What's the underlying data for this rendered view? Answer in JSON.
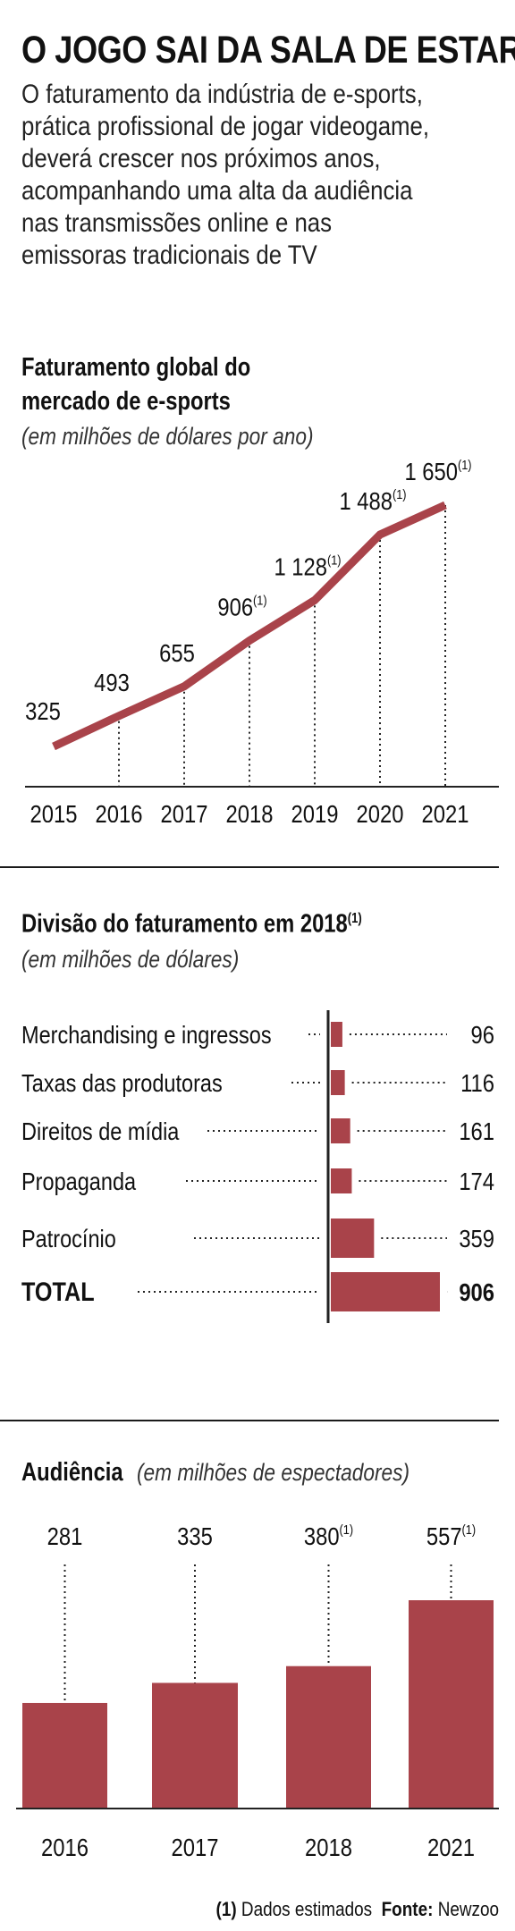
{
  "header": {
    "title": "O JOGO SAI DA SALA DE ESTAR",
    "intro_lines": [
      "O faturamento da indústria de e-sports,",
      "prática profissional de jogar videogame,",
      "deverá crescer nos próximos anos,",
      "acompanhando uma alta da audiência",
      "nas transmissões online e nas",
      "emissoras tradicionais de TV"
    ]
  },
  "colors": {
    "accent": "#a9434a",
    "text": "#1a1a1a",
    "background": "#ffffff"
  },
  "chart_data": [
    {
      "type": "line",
      "title_lines": [
        "Faturamento global do",
        "mercado de e-sports"
      ],
      "subtitle": "(em milhões de dólares por ano)",
      "x": [
        "2015",
        "2016",
        "2017",
        "2018",
        "2019",
        "2020",
        "2021"
      ],
      "values": [
        325,
        493,
        655,
        906,
        1128,
        1488,
        1650
      ],
      "value_labels": [
        "325",
        "493",
        "655",
        "906",
        "1 128",
        "1 488",
        "1 650"
      ],
      "estimated": [
        false,
        false,
        false,
        true,
        true,
        true,
        true
      ],
      "note_marker": "(1)",
      "grid": false
    },
    {
      "type": "bar",
      "orientation": "horizontal",
      "title": "Divisão do faturamento em 2018",
      "title_note": "(1)",
      "subtitle": "(em milhões de dólares)",
      "categories": [
        "Merchandising e ingressos",
        "Taxas das produtoras",
        "Direitos de mídia",
        "Propaganda",
        "Patrocínio",
        "TOTAL"
      ],
      "values": [
        96,
        116,
        161,
        174,
        359,
        906
      ]
    },
    {
      "type": "bar",
      "title": "Audiência",
      "subtitle": "(em milhões de espectadores)",
      "categories": [
        "2016",
        "2017",
        "2018",
        "2021"
      ],
      "values": [
        281,
        335,
        380,
        557
      ],
      "estimated": [
        false,
        false,
        true,
        true
      ],
      "note_marker": "(1)"
    }
  ],
  "footer": {
    "note_marker": "(1)",
    "note_text": "Dados estimados",
    "source_label": "Fonte:",
    "source": "Newzoo"
  }
}
